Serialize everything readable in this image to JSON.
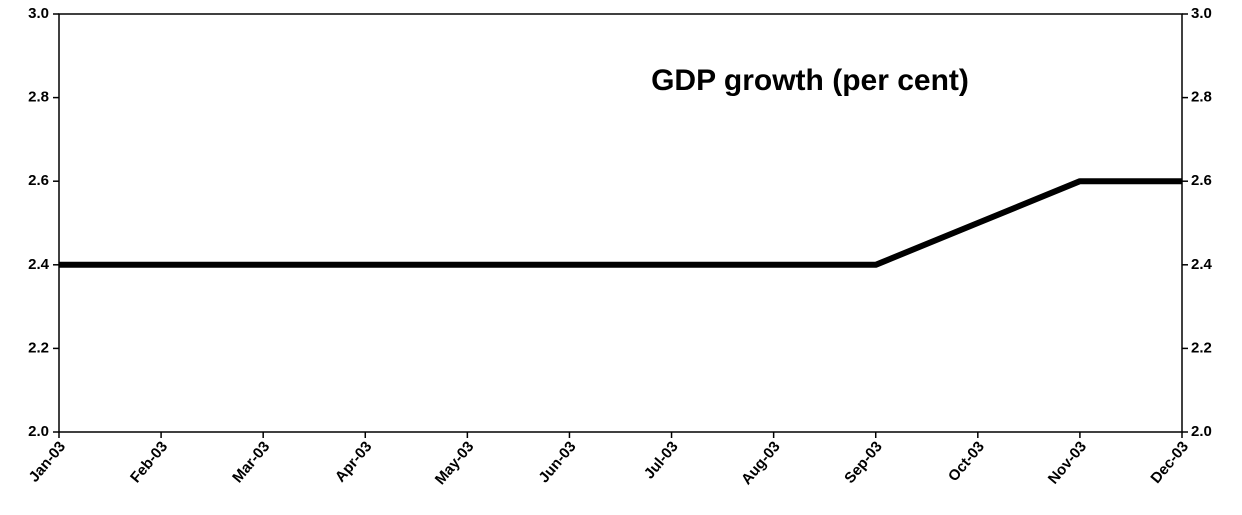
{
  "chart_data": {
    "type": "line",
    "title": "GDP growth (per cent)",
    "categories": [
      "Jan-03",
      "Feb-03",
      "Mar-03",
      "Apr-03",
      "May-03",
      "Jun-03",
      "Jul-03",
      "Aug-03",
      "Sep-03",
      "Oct-03",
      "Nov-03",
      "Dec-03"
    ],
    "values": [
      2.4,
      2.4,
      2.4,
      2.4,
      2.4,
      2.4,
      2.4,
      2.4,
      2.4,
      2.5,
      2.6,
      2.6
    ],
    "color": "#000000",
    "ylim": [
      2.0,
      3.0
    ],
    "yticks": [
      {
        "value": 2.0,
        "label": "2.0"
      },
      2.2,
      2.4,
      2.6,
      2.8,
      {
        "value": 3.0,
        "label": "3.0"
      }
    ],
    "y2lim": [
      2.0,
      3.0
    ],
    "y2ticks": [
      {
        "value": 2.0,
        "label": "2.0"
      },
      2.2,
      2.4,
      2.6,
      2.8,
      {
        "value": 3.0,
        "label": "3.0"
      }
    ]
  }
}
